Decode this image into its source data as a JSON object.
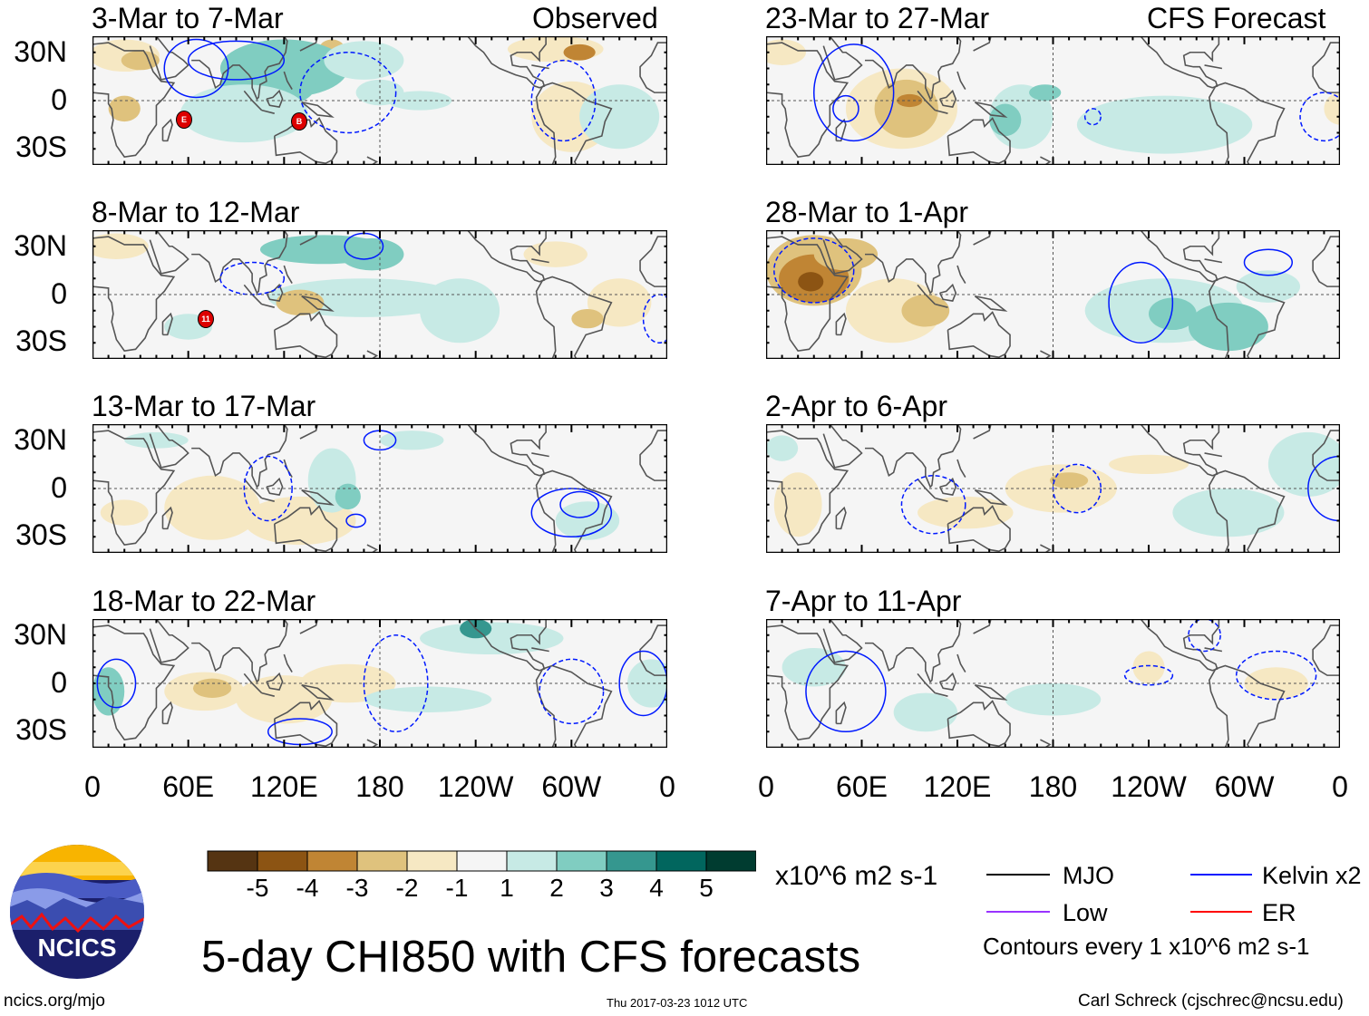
{
  "headers": {
    "observed": "Observed",
    "forecast": "CFS Forecast"
  },
  "panels_left": [
    {
      "label": "3-Mar to 7-Mar"
    },
    {
      "label": "8-Mar to 12-Mar"
    },
    {
      "label": "13-Mar to 17-Mar"
    },
    {
      "label": "18-Mar to 22-Mar"
    }
  ],
  "panels_right": [
    {
      "label": "23-Mar to 27-Mar"
    },
    {
      "label": "28-Mar to 1-Apr"
    },
    {
      "label": "2-Apr to 6-Apr"
    },
    {
      "label": "7-Apr to 11-Apr"
    }
  ],
  "storms": [
    {
      "letter": "E"
    },
    {
      "letter": "B"
    },
    {
      "letter": "11"
    }
  ],
  "y_ticks": [
    "30N",
    "0",
    "30S"
  ],
  "x_ticks": [
    "0",
    "60E",
    "120E",
    "180",
    "120W",
    "60W",
    "0"
  ],
  "chart_data": {
    "type": "heatmap",
    "title": "5-day CHI850 with CFS forecasts",
    "variable": "CHI850 anomaly",
    "units": "x10^6 m2 s-1",
    "lon_range": [
      0,
      360
    ],
    "lat_range": [
      -40,
      40
    ],
    "colorbar": {
      "labels": [
        "-5",
        "-4",
        "-3",
        "-2",
        "-1",
        "1",
        "2",
        "3",
        "4",
        "5"
      ],
      "colors": [
        "#553412",
        "#8c5413",
        "#c08534",
        "#dfc27d",
        "#f6e8c3",
        "#f5f5f5",
        "#c7eae5",
        "#80cdc1",
        "#35978f",
        "#01665e",
        "#003c30"
      ]
    },
    "legend": [
      {
        "label": "MJO",
        "color": "#000000"
      },
      {
        "label": "Kelvin x2",
        "color": "#0019ff"
      },
      {
        "label": "Low",
        "color": "#9933ff"
      },
      {
        "label": "ER",
        "color": "#ff0000"
      }
    ],
    "contour_note": "Contours every 1 x10^6 m2 s-1"
  },
  "logo": {
    "text": "NCICS"
  },
  "footer": {
    "url": "ncics.org/mjo",
    "timestamp": "Thu 2017-03-23 1012 UTC",
    "author": "Carl Schreck (cjschrec@ncsu.edu)"
  }
}
